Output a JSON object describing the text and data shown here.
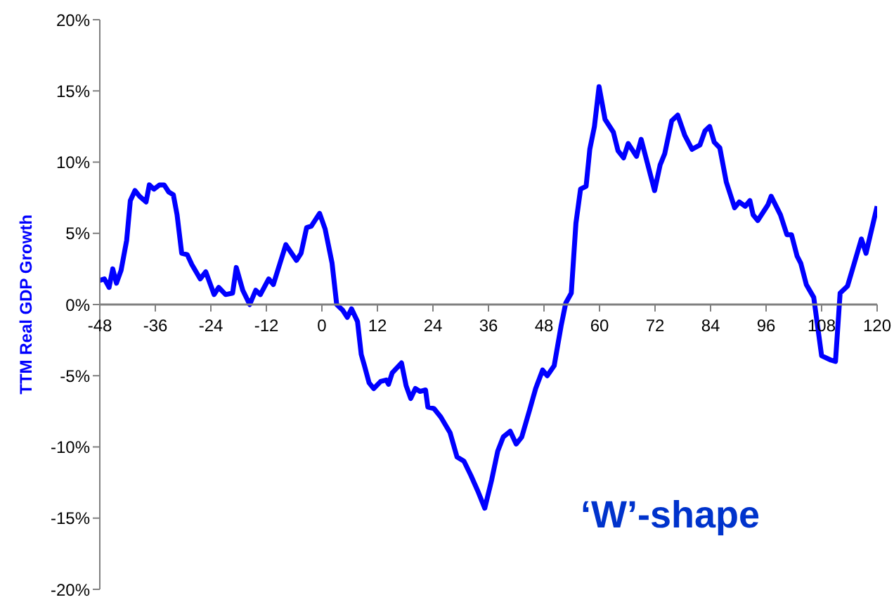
{
  "chart_data": {
    "type": "line",
    "ylabel": "TTM Real GDP Growth",
    "annotations": [
      "‘W’-shape"
    ],
    "xlim": [
      -48,
      120
    ],
    "xticks": [
      -48,
      -36,
      -24,
      -12,
      0,
      12,
      24,
      36,
      48,
      60,
      72,
      84,
      96,
      108,
      120
    ],
    "ylim": [
      -20,
      20
    ],
    "yticks": [
      {
        "value": -20,
        "label": "-20%"
      },
      {
        "value": -15,
        "label": "-15%"
      },
      {
        "value": -10,
        "label": "-10%"
      },
      {
        "value": -5,
        "label": "-5%"
      },
      {
        "value": 0,
        "label": "0%"
      },
      {
        "value": 5,
        "label": "5%"
      },
      {
        "value": 10,
        "label": "10%"
      },
      {
        "value": 15,
        "label": "15%"
      },
      {
        "value": 20,
        "label": "20%"
      }
    ],
    "grid": false,
    "marker": "none",
    "line_style": "solid",
    "series": [
      {
        "color": "#0000ff",
        "x": [
          -48,
          -47,
          -46,
          -45.2,
          -44.4,
          -43.4,
          -42.2,
          -41.4,
          -40.4,
          -39.4,
          -38,
          -37.3,
          -36.3,
          -35.1,
          -34.1,
          -33.1,
          -32.1,
          -31.3,
          -30.3,
          -29.1,
          -28.1,
          -26.3,
          -25.1,
          -23.3,
          -22.3,
          -20.8,
          -19.3,
          -18.5,
          -17.1,
          -15.6,
          -14.3,
          -13.3,
          -11.5,
          -10.5,
          -7.8,
          -5.5,
          -4.5,
          -3.3,
          -2.3,
          -0.5,
          0.7,
          2.2,
          3.2,
          4.5,
          5.5,
          6.4,
          7.7,
          8.5,
          9.2,
          10.2,
          11.2,
          12.7,
          13.9,
          14.4,
          15.2,
          17.2,
          18.2,
          19.2,
          20.2,
          21.2,
          22.4,
          22.9,
          24.2,
          25.7,
          27.7,
          29.2,
          30.7,
          32.2,
          33.7,
          35.2,
          36.7,
          38,
          39.2,
          40.7,
          42,
          43.2,
          44.9,
          46.2,
          47.7,
          48.7,
          50.2,
          51.7,
          52.7,
          53.9,
          54.9,
          55.9,
          57.1,
          57.9,
          58.9,
          59.9,
          61.2,
          63,
          64,
          65.2,
          66.2,
          68,
          69,
          71.9,
          73.1,
          74.1,
          75.6,
          76.9,
          78.4,
          80,
          81.7,
          82.8,
          83.8,
          84.8,
          86,
          87.4,
          89.2,
          90.2,
          91.5,
          92.5,
          93.2,
          94.2,
          96.4,
          97.1,
          99.1,
          100.5,
          101.5,
          102.7,
          103.5,
          104.7,
          106.3,
          107,
          108,
          110,
          111,
          112,
          113.6,
          114.6,
          116.6,
          117.6,
          120
        ],
        "values": [
          1.7,
          1.8,
          1.2,
          2.5,
          1.5,
          2.4,
          4.5,
          7.3,
          8.0,
          7.6,
          7.2,
          8.4,
          8.1,
          8.4,
          8.4,
          7.9,
          7.7,
          6.3,
          3.6,
          3.5,
          2.8,
          1.8,
          2.3,
          0.7,
          1.2,
          0.7,
          0.8,
          2.6,
          1.0,
          0,
          1.0,
          0.7,
          1.8,
          1.4,
          4.2,
          3.1,
          3.6,
          5.4,
          5.5,
          6.4,
          5.3,
          2.9,
          0,
          -0.4,
          -0.9,
          -0.3,
          -1.2,
          -3.5,
          -4.3,
          -5.5,
          -5.9,
          -5.4,
          -5.3,
          -5.6,
          -4.8,
          -4.1,
          -5.7,
          -6.6,
          -5.9,
          -6.1,
          -6.0,
          -7.2,
          -7.3,
          -7.9,
          -9.0,
          -10.7,
          -11.0,
          -12.0,
          -13.1,
          -14.3,
          -12.3,
          -10.3,
          -9.3,
          -8.9,
          -9.8,
          -9.3,
          -7.4,
          -5.9,
          -4.6,
          -5.0,
          -4.3,
          -1.5,
          0.1,
          0.8,
          5.7,
          8.1,
          8.3,
          10.9,
          12.5,
          15.3,
          13.0,
          12.1,
          10.8,
          10.3,
          11.3,
          10.4,
          11.6,
          8.0,
          9.8,
          10.6,
          12.9,
          13.3,
          11.9,
          10.9,
          11.2,
          12.2,
          12.5,
          11.4,
          11.0,
          8.6,
          6.8,
          7.2,
          6.9,
          7.3,
          6.3,
          5.9,
          7.0,
          7.6,
          6.3,
          4.9,
          4.9,
          3.4,
          2.9,
          1.4,
          0.5,
          -1.2,
          -3.6,
          -3.9,
          -4.0,
          0.8,
          1.3,
          2.4,
          4.6,
          3.6,
          6.9
        ]
      }
    ]
  }
}
